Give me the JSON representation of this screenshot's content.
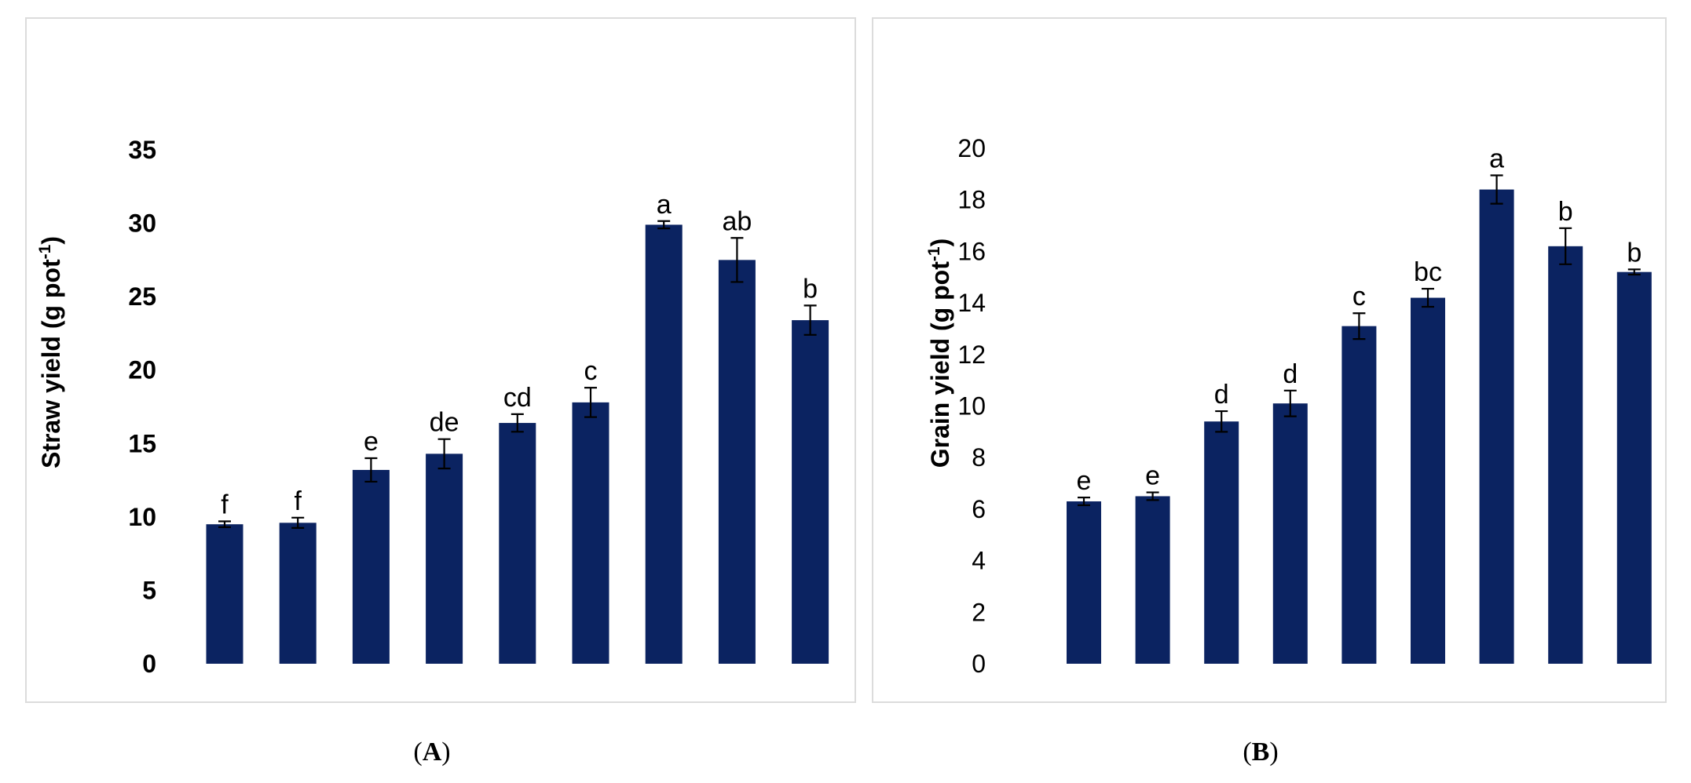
{
  "chart_data": [
    {
      "type": "bar",
      "panel_label": "A",
      "ylabel": "Straw yield (g pot",
      "ylabel_sup": "-1",
      "ylabel_close": ")",
      "ylim": [
        0,
        35
      ],
      "yticks": [
        0,
        5,
        10,
        15,
        20,
        25,
        30,
        35
      ],
      "tick_bold": true,
      "bar_color": "#0b2361",
      "values": [
        9.5,
        9.6,
        13.2,
        14.3,
        16.4,
        17.8,
        29.9,
        27.5,
        23.4
      ],
      "errors": [
        0.2,
        0.35,
        0.8,
        1.0,
        0.6,
        1.0,
        0.25,
        1.5,
        1.0
      ],
      "letters": [
        "f",
        "f",
        "e",
        "de",
        "cd",
        "c",
        "a",
        "ab",
        "b"
      ]
    },
    {
      "type": "bar",
      "panel_label": "B",
      "ylabel": "Grain yield (g pot",
      "ylabel_sup": "-1",
      "ylabel_close": ")",
      "ylim": [
        0,
        20
      ],
      "yticks": [
        0,
        2,
        4,
        6,
        8,
        10,
        12,
        14,
        16,
        18,
        20
      ],
      "tick_bold": false,
      "bar_color": "#0b2361",
      "values": [
        6.3,
        6.5,
        9.4,
        10.1,
        13.1,
        14.2,
        18.4,
        16.2,
        15.2
      ],
      "errors": [
        0.15,
        0.15,
        0.4,
        0.5,
        0.5,
        0.35,
        0.55,
        0.7,
        0.1
      ],
      "letters": [
        "e",
        "e",
        "d",
        "d",
        "c",
        "bc",
        "a",
        "b",
        "b"
      ]
    }
  ]
}
